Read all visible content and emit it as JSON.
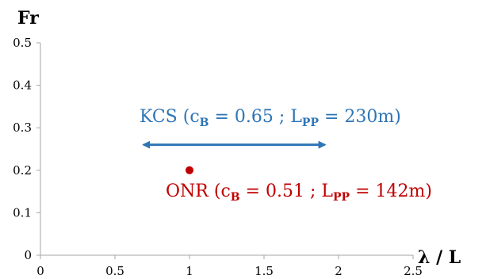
{
  "chart_data": {
    "type": "scatter",
    "x_label": "λ / L",
    "y_label": "Fr",
    "xlim": [
      0,
      2.5
    ],
    "ylim": [
      0,
      0.5
    ],
    "x_ticks": [
      "0",
      "0.5",
      "1",
      "1.5",
      "2",
      "2.5"
    ],
    "y_ticks": [
      "0",
      "0.1",
      "0.2",
      "0.3",
      "0.4",
      "0.5"
    ],
    "grid": false,
    "series": [
      {
        "name": "KCS",
        "kind": "range",
        "color": "#2e75b6",
        "x_range": [
          0.65,
          1.95
        ],
        "y": 0.26,
        "label": {
          "name": "KCS",
          "cb_sym": "c",
          "cb_sub": "B",
          "cb_val": " = 0.65 ; ",
          "lpp_sym": "L",
          "lpp_sub": "PP",
          "lpp_val": " = 230m)"
        }
      },
      {
        "name": "ONR",
        "kind": "point",
        "color": "#c00000",
        "x": 1.0,
        "y": 0.2,
        "label": {
          "name": "ONR",
          "cb_sym": "c",
          "cb_sub": "B",
          "cb_val": " = 0.51 ; ",
          "lpp_sym": "L",
          "lpp_sub": "PP",
          "lpp_val": " = 142m)"
        }
      }
    ]
  }
}
